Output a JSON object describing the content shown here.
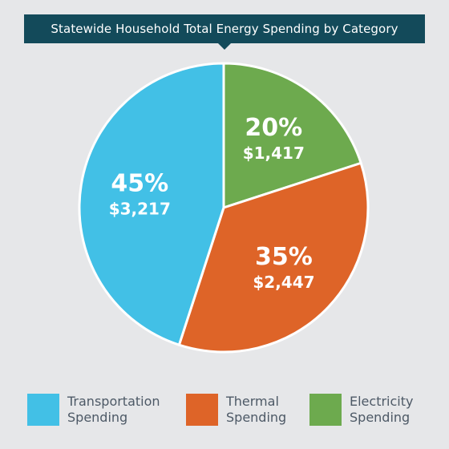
{
  "colors": {
    "background": "#e6e7e9",
    "title_background": "#134a5a",
    "title_text": "#ffffff",
    "label_text": "#ffffff",
    "legend_text": "#4d5966"
  },
  "chart_data": {
    "type": "pie",
    "title": "Statewide Household Total Energy Spending by Category",
    "slices": [
      {
        "key": "electricity",
        "percent": 20,
        "value": 1417,
        "percent_label": "20%",
        "value_label": "$1,417",
        "color": "#6daa4e"
      },
      {
        "key": "thermal",
        "percent": 35,
        "value": 2447,
        "percent_label": "35%",
        "value_label": "$2,447",
        "color": "#de6428"
      },
      {
        "key": "transportation",
        "percent": 45,
        "value": 3217,
        "percent_label": "45%",
        "value_label": "$3,217",
        "color": "#42c0e6"
      }
    ],
    "legend": [
      {
        "key": "transportation",
        "line1": "Transportation",
        "line2": "Spending",
        "color": "#42c0e6"
      },
      {
        "key": "thermal",
        "line1": "Thermal",
        "line2": "Spending",
        "color": "#de6428"
      },
      {
        "key": "electricity",
        "line1": "Electricity",
        "line2": "Spending",
        "color": "#6daa4e"
      }
    ]
  }
}
